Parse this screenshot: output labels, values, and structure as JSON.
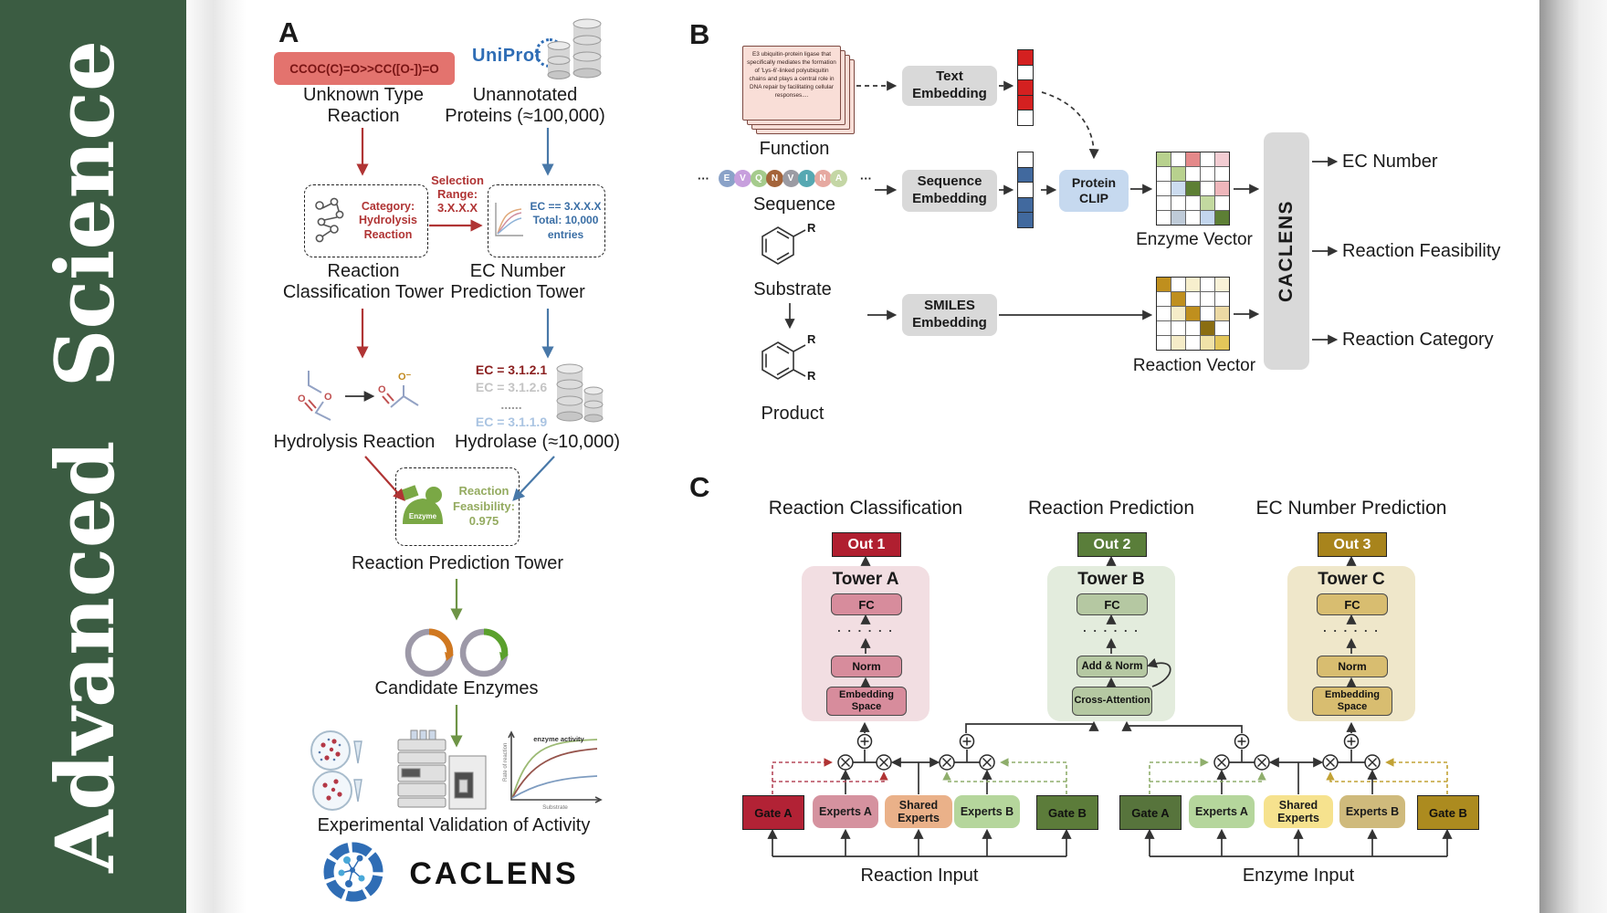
{
  "journal": {
    "name": "Advanced Science",
    "brand_color": "#3b5c42"
  },
  "panelA": {
    "label": "A",
    "smiles": "CCOC(C)=O>>CC([O-])=O",
    "unknown_reaction_label": "Unknown Type Reaction",
    "uniprot_wordmark": "UniProt",
    "unannotated_label": "Unannotated Proteins (≈100,000)",
    "selection_label": "Selection Range: 3.X.X.X",
    "classification_box_text": "Category: Hydrolysis Reaction",
    "ec_box_line1": "EC == 3.X.X.X",
    "ec_box_line2": "Total: 10,000",
    "ec_box_line3": "entries",
    "tower1_line1": "Reaction",
    "tower1_line2": "Classification Tower",
    "tower2_line1": "EC Number",
    "tower2_line2": "Prediction Tower",
    "ec_list_1": "EC = 3.1.2.1",
    "ec_list_2": "EC = 3.1.2.6",
    "ec_list_dots": "......",
    "ec_list_3": "EC = 3.1.1.9",
    "hydrolysis_label": "Hydrolysis Reaction",
    "hydrolase_label": "Hydrolase (≈10,000)",
    "enzyme_blob_label": "Enzyme",
    "feasibility_text": "Reaction Feasibility: 0.975",
    "tower3_label": "Reaction Prediction Tower",
    "candidate_label": "Candidate Enzymes",
    "activity_plot": {
      "title": "enzyme activity",
      "ylabel": "Rate of reaction",
      "xlabel": "Substrate"
    },
    "validation_label": "Experimental Validation of Activity",
    "brand": "CACLENS"
  },
  "panelB": {
    "label": "B",
    "function_card_text": "E3 ubiquitin-protein ligase that specifically mediates the formation of 'Lys-6'-linked polyubiquitin chains and plays a central role in DNA repair by facilitating cellular responses....",
    "function_label": "Function",
    "ellipsis": "···",
    "sequence_residues": [
      {
        "letter": "E",
        "color": "#8aa2c8"
      },
      {
        "letter": "V",
        "color": "#c79fdd"
      },
      {
        "letter": "Q",
        "color": "#a5cb8c"
      },
      {
        "letter": "N",
        "color": "#a4643a"
      },
      {
        "letter": "V",
        "color": "#9b9ba3"
      },
      {
        "letter": "I",
        "color": "#56a8b2"
      },
      {
        "letter": "N",
        "color": "#e6a9a1"
      },
      {
        "letter": "A",
        "color": "#c4d6a5"
      }
    ],
    "sequence_label": "Sequence",
    "substrate_label": "Substrate",
    "product_label": "Product",
    "r_label": "R",
    "text_embedding": "Text Embedding",
    "sequence_embedding": "Sequence Embedding",
    "smiles_embedding": "SMILES Embedding",
    "protein_clip": "Protein CLIP",
    "text_vector_cells": [
      "#d42020",
      "#ffffff",
      "#d42020",
      "#d42020",
      "#ffffff"
    ],
    "seq_vector_cells": [
      "#ffffff",
      "#41699e",
      "#ffffff",
      "#41699e",
      "#41699e"
    ],
    "enzyme_grid": [
      "#b8d18e",
      "#ffffff",
      "#e4898a",
      "#ffffff",
      "#f2ccd2",
      "#ffffff",
      "#b8d18e",
      "#ffffff",
      "#ffffff",
      "#ffffff",
      "#ffffff",
      "#ccdcf0",
      "#5d7f35",
      "#ffffff",
      "#eeb6bb",
      "#ffffff",
      "#ffffff",
      "#ffffff",
      "#c3d9a0",
      "#ffffff",
      "#ffffff",
      "#bfcbd8",
      "#ffffff",
      "#c3d6ee",
      "#5d7f35"
    ],
    "reaction_grid": [
      "#bf8f1e",
      "#ffffff",
      "#f7efcd",
      "#ffffff",
      "#f9f2d8",
      "#ffffff",
      "#bf8f1e",
      "#ffffff",
      "#ffffff",
      "#ffffff",
      "#ffffff",
      "#f5ecc8",
      "#bf8f1e",
      "#ffffff",
      "#ecd9a4",
      "#ffffff",
      "#ffffff",
      "#ffffff",
      "#8a6d12",
      "#ffffff",
      "#ffffff",
      "#f5ecc8",
      "#ffffff",
      "#f0e2a8",
      "#e3c65a"
    ],
    "enzyme_vector_label": "Enzyme Vector",
    "reaction_vector_label": "Reaction Vector",
    "caclens_label": "CACLENS",
    "output1": "EC Number",
    "output2": "Reaction Feasibility",
    "output3": "Reaction Category"
  },
  "panelC": {
    "label": "C",
    "heading1": "Reaction Classification",
    "heading2": "Reaction Prediction",
    "heading3": "EC Number Prediction",
    "out1": "Out 1",
    "out2": "Out 2",
    "out3": "Out 3",
    "out_colors": [
      "#b01f30",
      "#5a7e3a",
      "#a8841c"
    ],
    "towerA": {
      "title": "Tower A",
      "fc": "FC",
      "dots": ". . . . . .",
      "norm": "Norm",
      "embed": "Embedding Space"
    },
    "towerB": {
      "title": "Tower B",
      "fc": "FC",
      "dots": ". . . . . .",
      "addnorm": "Add & Norm",
      "cross": "Cross-Attention"
    },
    "towerC": {
      "title": "Tower C",
      "fc": "FC",
      "dots": ". . . . . .",
      "norm": "Norm",
      "embed": "Embedding Space"
    },
    "expert_groups": [
      {
        "input_label": "Reaction Input",
        "boxes": [
          {
            "label": "Gate A",
            "color": "#b22235"
          },
          {
            "label": "Experts A",
            "color": "#d5929f"
          },
          {
            "label": "Shared Experts",
            "color": "#eab189"
          },
          {
            "label": "Experts B",
            "color": "#b5d69c"
          },
          {
            "label": "Gate B",
            "color": "#5c7c3a"
          }
        ]
      },
      {
        "input_label": "Enzyme Input",
        "boxes": [
          {
            "label": "Gate A",
            "color": "#57743c"
          },
          {
            "label": "Experts A",
            "color": "#b5d69c"
          },
          {
            "label": "Shared Experts",
            "color": "#f6e28e"
          },
          {
            "label": "Experts B",
            "color": "#cfba7c"
          },
          {
            "label": "Gate B",
            "color": "#ac8b1f"
          }
        ]
      }
    ]
  }
}
